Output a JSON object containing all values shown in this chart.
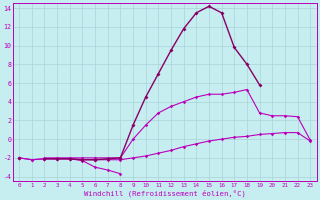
{
  "xlabel": "Windchill (Refroidissement éolien,°C)",
  "background_color": "#c6edf0",
  "grid_color": "#a8d4d8",
  "line_color": "#bb00bb",
  "line_color2": "#880066",
  "x": [
    0,
    1,
    2,
    3,
    4,
    5,
    6,
    7,
    8,
    9,
    10,
    11,
    12,
    13,
    14,
    15,
    16,
    17,
    18,
    19,
    20,
    21,
    22,
    23
  ],
  "series_flat1": [
    -2.0,
    -2.2,
    -2.1,
    -2.1,
    -2.1,
    -2.2,
    -2.2,
    -2.2,
    -2.2,
    -2.0,
    -1.8,
    -1.5,
    -1.2,
    -0.8,
    -0.5,
    -0.2,
    0.0,
    0.2,
    0.3,
    0.5,
    0.6,
    0.7,
    0.7,
    -0.2
  ],
  "series_dip": [
    -2.0,
    -2.2,
    -2.1,
    -2.1,
    -2.1,
    -2.3,
    -3.0,
    -3.3,
    -3.7,
    null,
    null,
    null,
    null,
    null,
    null,
    null,
    null,
    null,
    null,
    null,
    null,
    null,
    null,
    null
  ],
  "series_mid": [
    -2.0,
    null,
    -2.0,
    -2.0,
    -2.0,
    -2.0,
    -2.0,
    -2.0,
    -2.0,
    0.0,
    1.5,
    2.8,
    3.5,
    4.0,
    4.5,
    4.8,
    4.8,
    5.0,
    5.3,
    2.8,
    2.5,
    2.5,
    2.4,
    -0.1
  ],
  "series_peak": [
    -2.0,
    null,
    -2.1,
    -2.1,
    -2.1,
    -2.2,
    -2.2,
    -2.1,
    -2.0,
    1.5,
    4.5,
    7.0,
    9.5,
    11.8,
    13.5,
    14.2,
    13.5,
    9.8,
    8.0,
    5.8,
    null,
    null,
    null,
    null
  ],
  "ylim": [
    -4.5,
    14.5
  ],
  "xlim": [
    -0.5,
    23.5
  ],
  "yticks": [
    -4,
    -2,
    0,
    2,
    4,
    6,
    8,
    10,
    12,
    14
  ],
  "xticks": [
    0,
    1,
    2,
    3,
    4,
    5,
    6,
    7,
    8,
    9,
    10,
    11,
    12,
    13,
    14,
    15,
    16,
    17,
    18,
    19,
    20,
    21,
    22,
    23
  ]
}
